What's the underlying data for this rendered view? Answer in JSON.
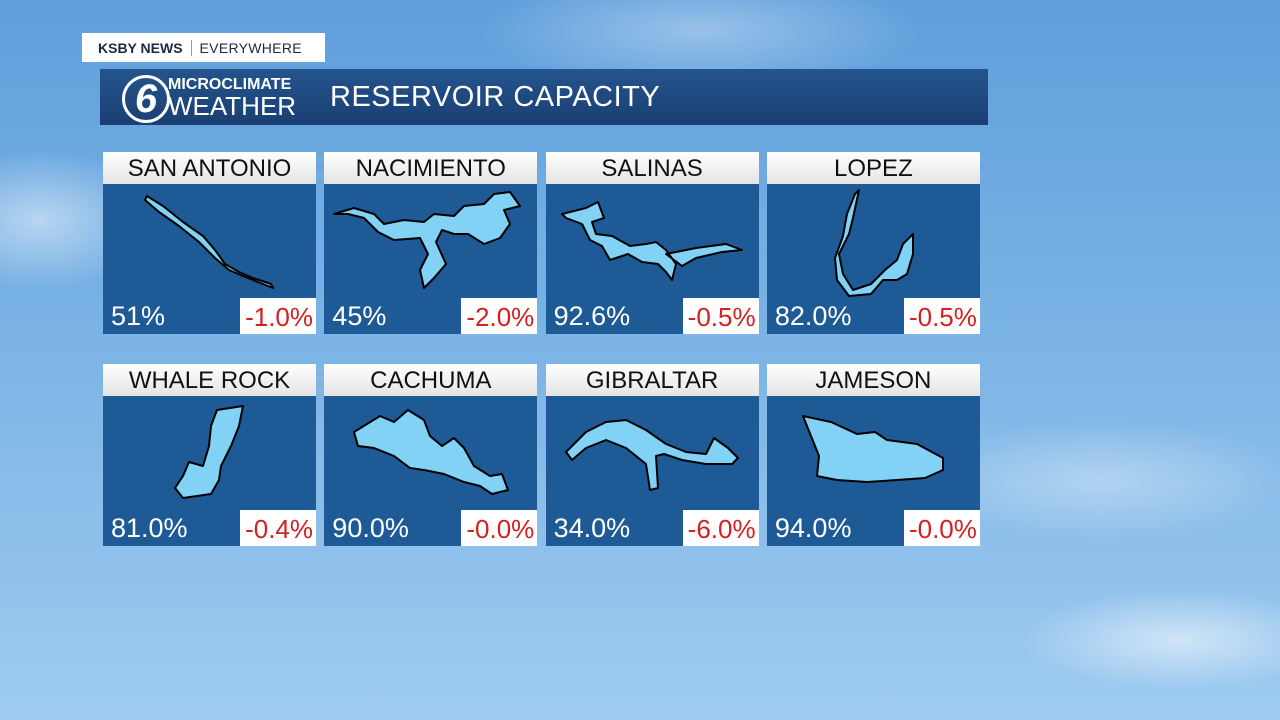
{
  "header": {
    "brand": "KSBY NEWS",
    "tagline": "EVERYWHERE"
  },
  "logo": {
    "number": "6",
    "line1": "MICROCLIMATE",
    "line2": "WEATHER"
  },
  "title": "RESERVOIR CAPACITY",
  "reservoirs": [
    {
      "name": "SAN ANTONIO",
      "capacity": "51%",
      "change": "-1.0%"
    },
    {
      "name": "NACIMIENTO",
      "capacity": "45%",
      "change": "-2.0%"
    },
    {
      "name": "SALINAS",
      "capacity": "92.6%",
      "change": "-0.5%"
    },
    {
      "name": "LOPEZ",
      "capacity": "82.0%",
      "change": "-0.5%"
    },
    {
      "name": "WHALE ROCK",
      "capacity": "81.0%",
      "change": "-0.4%"
    },
    {
      "name": "CACHUMA",
      "capacity": "90.0%",
      "change": "-0.0%"
    },
    {
      "name": "GIBRALTAR",
      "capacity": "34.0%",
      "change": "-6.0%"
    },
    {
      "name": "JAMESON",
      "capacity": "94.0%",
      "change": "-0.0%"
    }
  ]
}
